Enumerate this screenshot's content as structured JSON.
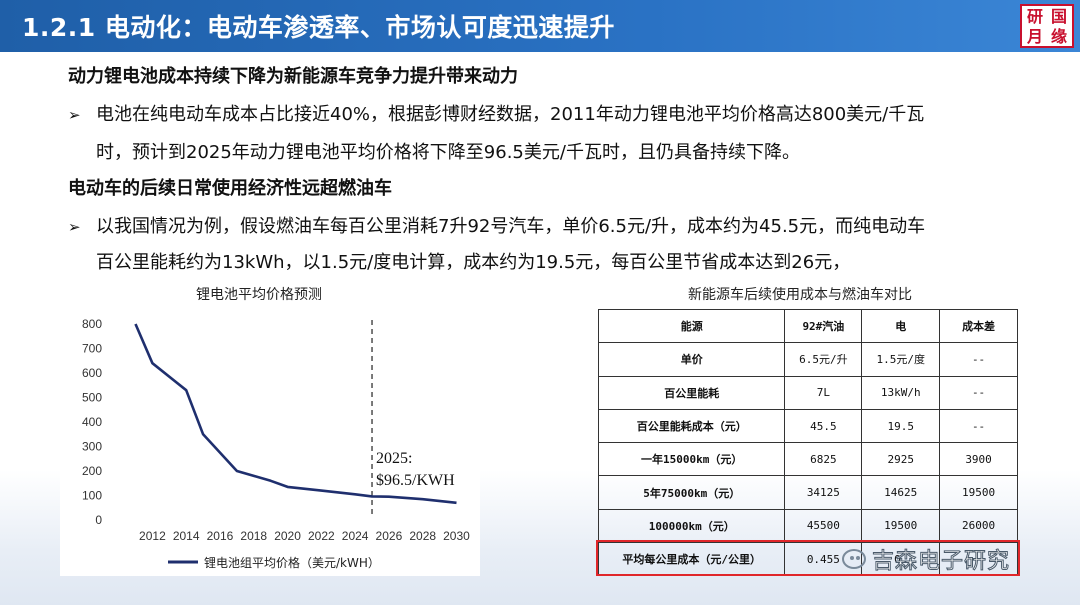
{
  "header": {
    "title": "1.2.1 电动化：电动车渗透率、市场认可度迅速提升",
    "logo_chars": [
      "研",
      "国",
      "月",
      "缘"
    ]
  },
  "section1": {
    "heading": "动力锂电池成本持续下降为新能源车竞争力提升带来动力",
    "bullet_line1": "电池在纯电动车成本占比接近40%，根据彭博财经数据，2011年动力锂电池平均价格高达800美元/千瓦",
    "bullet_line2": "时，预计到2025年动力锂电池平均价格将下降至96.5美元/千瓦时，且仍具备持续下降。"
  },
  "section2": {
    "heading": "电动车的后续日常使用经济性远超燃油车",
    "bullet_line1": "以我国情况为例，假设燃油车每百公里消耗7升92号汽车，单价6.5元/升，成本约为45.5元，而纯电动车",
    "bullet_line2": "百公里能耗约为13kWh，以1.5元/度电计算，成本约为19.5元，每百公里节省成本达到26元，"
  },
  "chart_data": {
    "type": "line",
    "title": "锂电池平均价格预测",
    "x": [
      2011,
      2012,
      2014,
      2015,
      2016,
      2017,
      2018,
      2019,
      2020,
      2022,
      2024,
      2025,
      2026,
      2028,
      2030
    ],
    "series": [
      {
        "name": "锂电池组平均价格（美元/kWH）",
        "values": [
          800,
          640,
          530,
          350,
          275,
          200,
          180,
          160,
          135,
          120,
          105,
          96.5,
          95,
          85,
          70
        ],
        "color": "#1f2f6e"
      }
    ],
    "xticks": [
      2012,
      2014,
      2016,
      2018,
      2020,
      2022,
      2024,
      2026,
      2028,
      2030
    ],
    "yticks": [
      0,
      100,
      200,
      300,
      400,
      500,
      600,
      700,
      800
    ],
    "xlim": [
      2010.2,
      2030.8
    ],
    "ylim": [
      0,
      800
    ],
    "vline_x": 2025,
    "annotation_line1": "2025:",
    "annotation_line2": "$96.5/KWH",
    "legend_position": "bottom"
  },
  "table": {
    "title": "新能源车后续使用成本与燃油车对比",
    "headers": [
      "能源",
      "92#汽油",
      "电",
      "成本差"
    ],
    "rows": [
      [
        "单价",
        "6.5元/升",
        "1.5元/度",
        "--"
      ],
      [
        "百公里能耗",
        "7L",
        "13kW/h",
        "--"
      ],
      [
        "百公里能耗成本（元）",
        "45.5",
        "19.5",
        "--"
      ],
      [
        "一年15000km（元）",
        "6825",
        "2925",
        "3900"
      ],
      [
        "5年75000km（元）",
        "34125",
        "14625",
        "19500"
      ],
      [
        "100000km（元）",
        "45500",
        "19500",
        "26000"
      ],
      [
        "平均每公里成本（元/公里）",
        "0.455",
        "0.",
        ""
      ]
    ]
  },
  "watermark": {
    "text": "吉森电子研究"
  },
  "colors": {
    "header": "#1f5fa8",
    "line": "#1f2f6e",
    "highlight": "#e0262a"
  }
}
